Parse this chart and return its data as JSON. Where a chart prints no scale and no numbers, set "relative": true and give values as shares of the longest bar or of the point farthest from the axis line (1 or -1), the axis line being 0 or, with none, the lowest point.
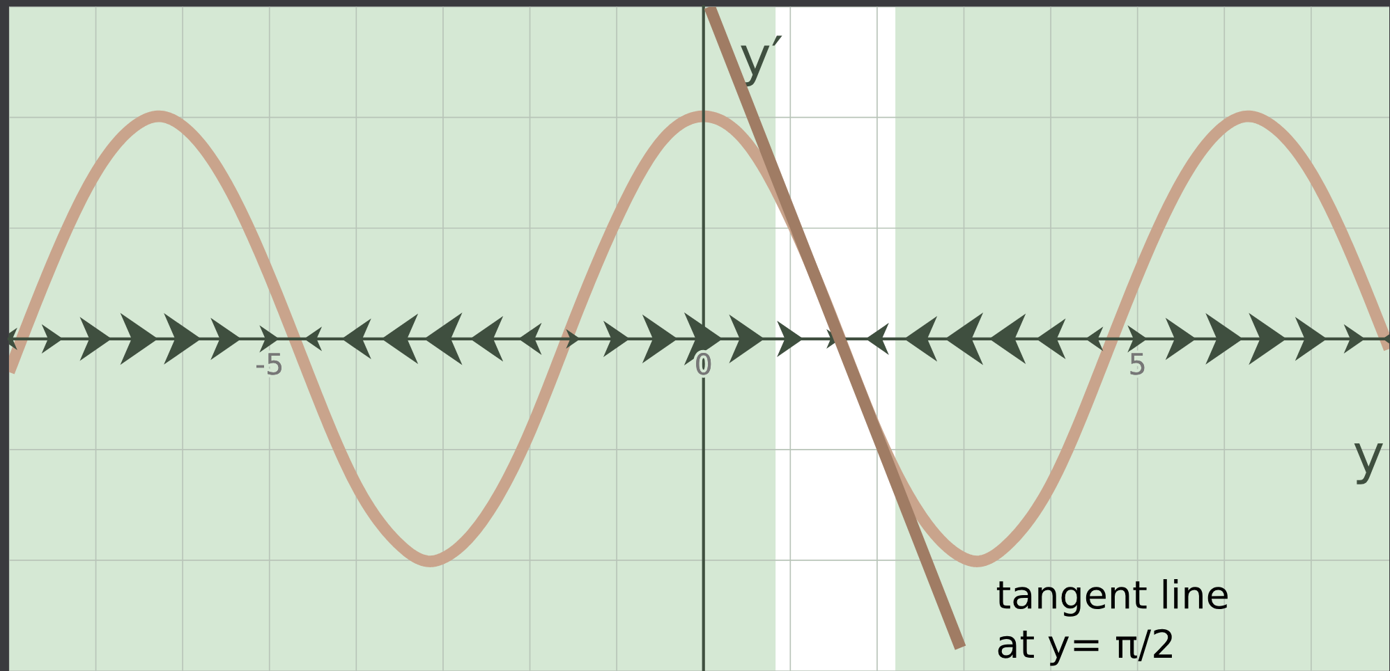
{
  "chart_data": {
    "type": "line",
    "relative": true,
    "xlabel": "y",
    "ylabel": "y′",
    "xlim": [
      -8,
      7.9
    ],
    "xticks": [
      {
        "value": -8,
        "label": null
      },
      {
        "value": -7,
        "label": null
      },
      {
        "value": -6,
        "label": null
      },
      {
        "value": -5,
        "label": "-5"
      },
      {
        "value": -4,
        "label": null
      },
      {
        "value": -3,
        "label": null
      },
      {
        "value": -2,
        "label": null
      },
      {
        "value": -1,
        "label": null
      },
      {
        "value": 0,
        "label": "0"
      },
      {
        "value": 1,
        "label": null
      },
      {
        "value": 2,
        "label": null
      },
      {
        "value": 3,
        "label": null
      },
      {
        "value": 4,
        "label": null
      },
      {
        "value": 5,
        "label": "5"
      },
      {
        "value": 6,
        "label": null
      },
      {
        "value": 7,
        "label": null
      }
    ],
    "grid": true,
    "legend": false,
    "marker": "none",
    "line_style": "solid",
    "bands": [
      {
        "axis": "x",
        "from": -8,
        "to": 0.83,
        "color": "#d5e8d4"
      },
      {
        "axis": "x",
        "from": 2.21,
        "to": 7.9,
        "color": "#d5e8d4"
      }
    ],
    "series": [
      {
        "color": "#c9a48c",
        "x": [
          -8,
          -7.5,
          -7,
          -6.5,
          -6.28,
          -6,
          -5.5,
          -5,
          -4.5,
          -4,
          -3.5,
          -3.14,
          -3,
          -2.5,
          -2,
          -1.5,
          -1,
          -0.5,
          0,
          0.5,
          1,
          1.5,
          2,
          2.5,
          3,
          3.14,
          3.5,
          4,
          4.5,
          5,
          5.5,
          6,
          6.28,
          6.5,
          7,
          7.5,
          7.9
        ],
        "values": [
          -0.1,
          0.23,
          0.5,
          0.65,
          0.67,
          0.64,
          0.47,
          0.19,
          -0.14,
          -0.44,
          -0.62,
          -0.67,
          -0.66,
          -0.53,
          -0.28,
          0.05,
          0.36,
          0.59,
          0.67,
          0.59,
          0.36,
          0.05,
          -0.28,
          -0.53,
          -0.66,
          -0.67,
          -0.62,
          -0.44,
          -0.14,
          0.19,
          0.47,
          0.64,
          0.67,
          0.65,
          0.5,
          0.23,
          -0.03
        ]
      },
      {
        "color": "#a07c64",
        "x": [
          0.07,
          2.96
        ],
        "values": [
          1.0,
          -0.93
        ]
      }
    ],
    "annotations": [
      "tangent line\nat y= π/2"
    ]
  }
}
